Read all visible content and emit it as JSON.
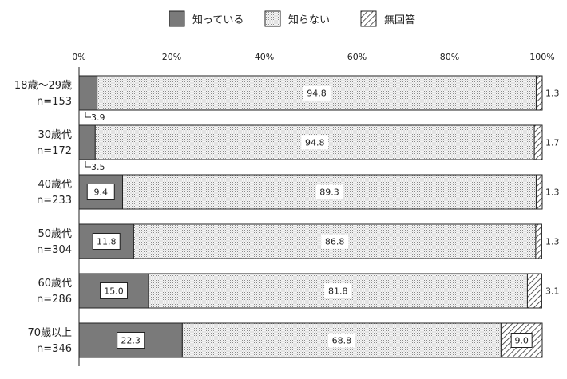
{
  "chart_data": {
    "type": "bar",
    "orientation": "horizontal",
    "stacked": true,
    "legend": {
      "position": "top",
      "entries": [
        "知っている",
        "知らない",
        "無回答"
      ]
    },
    "x_axis": {
      "range": [
        0,
        100
      ],
      "tick_labels": [
        "0%",
        "20%",
        "40%",
        "60%",
        "80%",
        "100%"
      ]
    },
    "categories": [
      {
        "label": "18歳～29歳",
        "n": "n=153"
      },
      {
        "label": "30歳代",
        "n": "n=172"
      },
      {
        "label": "40歳代",
        "n": "n=233"
      },
      {
        "label": "50歳代",
        "n": "n=304"
      },
      {
        "label": "60歳代",
        "n": "n=286"
      },
      {
        "label": "70歳以上",
        "n": "n=346"
      }
    ],
    "series": [
      {
        "name": "知っている",
        "style": "solid-gray",
        "color": "#7a7a7a",
        "values": [
          3.9,
          3.5,
          9.4,
          11.8,
          15.0,
          22.3
        ],
        "labels": [
          "3.9",
          "3.5",
          "9.4",
          "11.8",
          "15.0",
          "22.3"
        ]
      },
      {
        "name": "知らない",
        "style": "dotted",
        "color": "#e6e6e6",
        "values": [
          94.8,
          94.8,
          89.3,
          86.8,
          81.8,
          68.8
        ],
        "labels": [
          "94.8",
          "94.8",
          "89.3",
          "86.8",
          "81.8",
          "68.8"
        ]
      },
      {
        "name": "無回答",
        "style": "hatched",
        "color": "#ffffff",
        "values": [
          1.3,
          1.7,
          1.3,
          1.3,
          3.1,
          9.0
        ],
        "labels": [
          "1.3",
          "1.7",
          "1.3",
          "1.3",
          "3.1",
          "9.0"
        ]
      }
    ],
    "grid": false
  }
}
